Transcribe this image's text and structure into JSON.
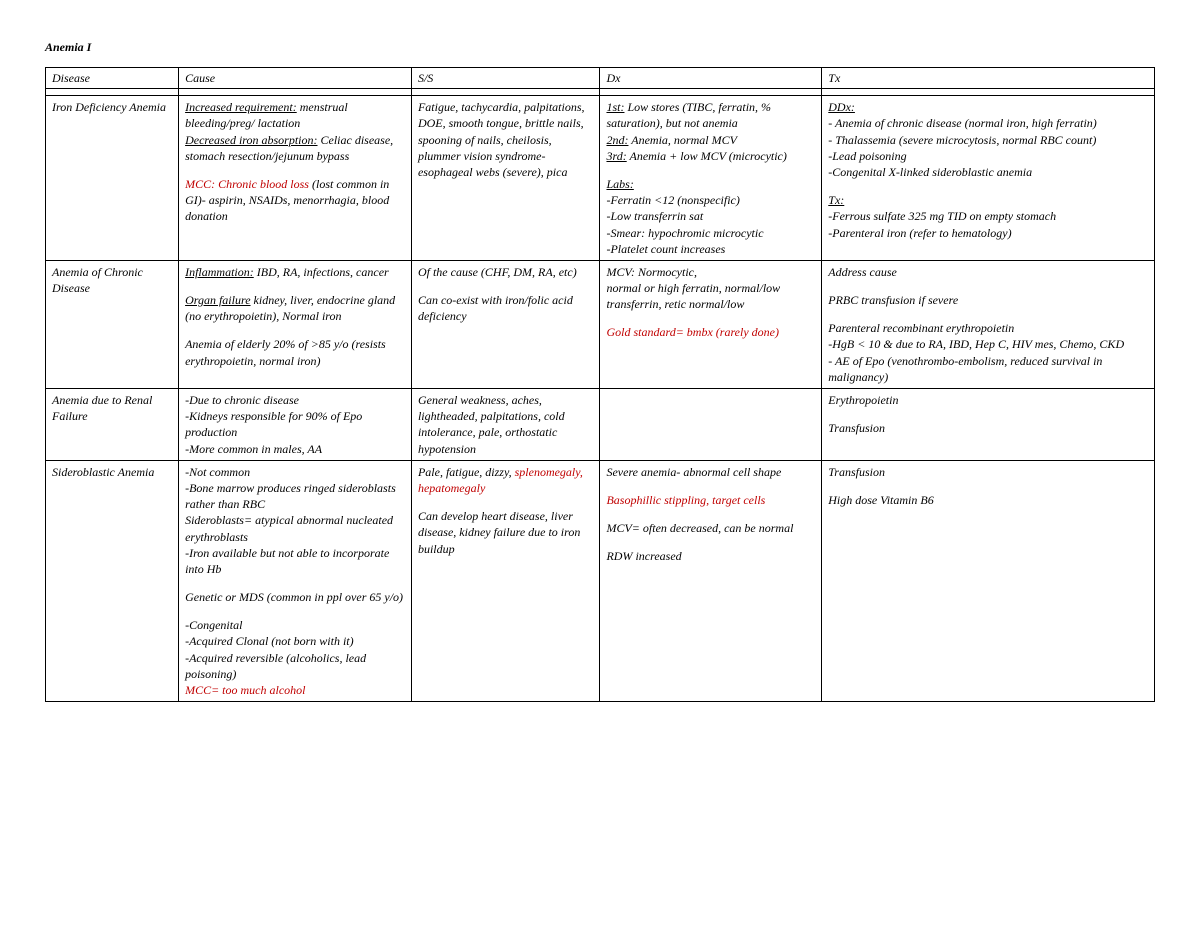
{
  "page": {
    "title": "Anemia I",
    "background": "#ffffff",
    "text_color": "#000000",
    "highlight_color": "#c00000",
    "font_family": "Georgia, 'Times New Roman', serif",
    "base_fontsize_pt": 9
  },
  "table": {
    "columns": [
      "Disease",
      "Cause",
      "S/S",
      "Dx",
      "Tx"
    ],
    "column_widths_pct": [
      12,
      21,
      17,
      20,
      30
    ],
    "rows": [
      {
        "disease": "Iron Deficiency Anemia",
        "cause": {
          "l1_u": "Increased requirement:",
          "l1_rest": " menstrual bleeding/preg/ lactation",
          "l2_u": "Decreased iron absorption:",
          "l2_rest": " Celiac disease, stomach resection/jejunum bypass",
          "l3_red": "MCC: Chronic blood loss",
          "l3_rest": " (lost common in GI)- aspirin, NSAIDs, menorrhagia, blood donation"
        },
        "ss": "Fatigue, tachycardia, palpitations, DOE, smooth tongue, brittle nails, spooning of nails, cheilosis, plummer vision syndrome- esophageal webs (severe), pica",
        "dx": {
          "l1_u": "1st:",
          "l1_rest": " Low stores (TIBC, ferratin, % saturation), but not anemia",
          "l2_u": "2nd:",
          "l2_rest": " Anemia, normal MCV",
          "l3_u": "3rd:",
          "l3_rest": " Anemia + low MCV (microcytic)",
          "labs_u": "Labs:",
          "labs1": "-Ferratin <12 (nonspecific)",
          "labs2": "-Low transferrin sat",
          "labs3": "-Smear: hypochromic microcytic",
          "labs4": "-Platelet count increases"
        },
        "tx": {
          "ddx_u": "DDx:",
          "d1": "- Anemia of chronic disease (normal iron, high ferratin)",
          "d2": "- Thalassemia (severe microcytosis, normal RBC count)",
          "d3": "-Lead poisoning",
          "d4": "-Congenital X-linked sideroblastic anemia",
          "tx_u": "Tx:",
          "t1": "-Ferrous sulfate 325 mg TID on empty stomach",
          "t2": "-Parenteral iron (refer to hematology)"
        }
      },
      {
        "disease": "Anemia of Chronic Disease",
        "cause": {
          "l1_u": "Inflammation:",
          "l1_rest": " IBD, RA, infections, cancer",
          "l2_u": "Organ failure",
          "l2_rest": " kidney, liver, endocrine gland (no erythropoietin), Normal iron",
          "l3": "Anemia of elderly 20% of >85 y/o (resists erythropoietin, normal iron)"
        },
        "ss": {
          "l1": "Of the cause (CHF, DM, RA, etc)",
          "l2": "Can co-exist with iron/folic acid deficiency"
        },
        "dx": {
          "l1": "MCV: Normocytic,",
          "l2": "normal or high ferratin, normal/low transferrin, retic normal/low",
          "l3_red": "Gold standard= bmbx (rarely done)"
        },
        "tx": {
          "l1": "Address cause",
          "l2": "PRBC transfusion if severe",
          "l3": "Parenteral recombinant erythropoietin",
          "l4": "-HgB < 10 & due to RA, IBD, Hep C, HIV mes, Chemo, CKD",
          "l5": "- AE of Epo (venothrombo-embolism, reduced survival in malignancy)"
        }
      },
      {
        "disease": "Anemia due to Renal Failure",
        "cause": {
          "l1": "-Due to chronic disease",
          "l2": "-Kidneys responsible for 90% of Epo production",
          "l3": "-More common in males, AA"
        },
        "ss": "General weakness, aches, lightheaded, palpitations, cold intolerance, pale, orthostatic hypotension",
        "dx": "",
        "tx": {
          "l1": "Erythropoietin",
          "l2": "Transfusion"
        }
      },
      {
        "disease": "Sideroblastic Anemia",
        "cause": {
          "l1": "-Not common",
          "l2": "-Bone marrow produces ringed sideroblasts rather than RBC",
          "l3": "Sideroblasts= atypical abnormal nucleated erythroblasts",
          "l4": "-Iron available but not able to incorporate into Hb",
          "l5": "Genetic or MDS (common in ppl over 65 y/o)",
          "l6": "-Congenital",
          "l7": "-Acquired Clonal (not born with it)",
          "l8": "-Acquired reversible (alcoholics, lead poisoning)",
          "l9_red": "MCC= too much alcohol"
        },
        "ss": {
          "l1": "Pale, fatigue, dizzy,",
          "l1_red": "splenomegaly, hepatomegaly",
          "l2": "Can develop heart disease, liver disease, kidney failure due to iron buildup"
        },
        "dx": {
          "l1": "Severe anemia- abnormal cell shape",
          "l2_red": "Basophillic stippling, target cells",
          "l3": "MCV= often decreased, can be normal",
          "l4": "RDW increased"
        },
        "tx": {
          "l1": "Transfusion",
          "l2": "High dose Vitamin B6"
        }
      }
    ]
  }
}
